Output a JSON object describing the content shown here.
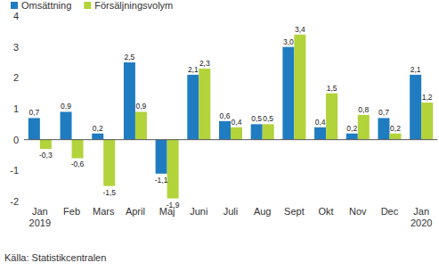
{
  "chart_data": {
    "type": "bar",
    "categories": [
      "Jan 2019",
      "Feb",
      "Mars",
      "April",
      "Maj",
      "Juni",
      "Juli",
      "Aug",
      "Sept",
      "Okt",
      "Nov",
      "Dec",
      "Jan 2020"
    ],
    "series": [
      {
        "name": "Omsättning",
        "color": "#1f7cc1",
        "values": [
          0.7,
          0.9,
          0.2,
          2.5,
          -1.1,
          2.1,
          0.6,
          0.5,
          3.0,
          0.4,
          0.2,
          0.7,
          2.1
        ],
        "value_labels": [
          "0,7",
          "0,9",
          "0,2",
          "2,5",
          "-1,1",
          "2,1",
          "0,6",
          "0,5",
          "3,0",
          "0,4",
          "0,2",
          "0,7",
          "2,1"
        ]
      },
      {
        "name": "Försäljningsvolym",
        "color": "#b2d33a",
        "values": [
          -0.3,
          -0.6,
          -1.5,
          0.9,
          -1.9,
          2.3,
          0.4,
          0.5,
          3.4,
          1.5,
          0.8,
          0.2,
          1.2
        ],
        "value_labels": [
          "-0,3",
          "-0,6",
          "-1,5",
          "0,9",
          "-1,9",
          "2,3",
          "0,4",
          "0,5",
          "3,4",
          "1,5",
          "0,8",
          "0,2",
          "1,2"
        ]
      }
    ],
    "ylim": [
      -2,
      4
    ],
    "yticks": [
      -2,
      -1,
      0,
      1,
      2,
      3,
      4
    ],
    "grid": false,
    "legend": "top-left",
    "data_labels": true,
    "annotations": [
      "Källa: Statistikcentralen"
    ]
  }
}
